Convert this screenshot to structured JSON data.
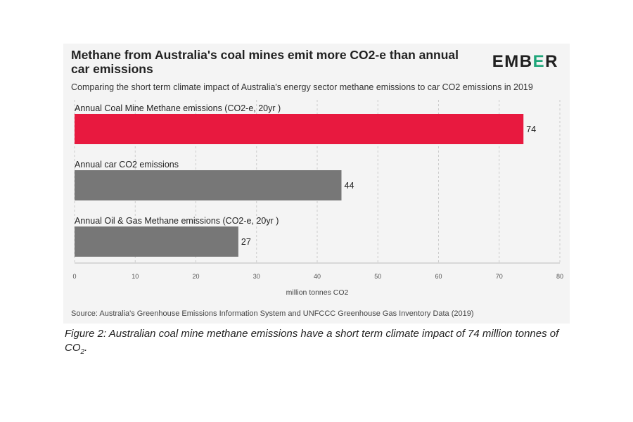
{
  "chart_data": {
    "type": "bar",
    "orientation": "horizontal",
    "title": "Methane from Australia's coal mines emit more CO2-e than annual car emissions",
    "subtitle": "Comparing the short term climate impact of Australia's energy sector methane emissions to car CO2 emissions in 2019",
    "categories": [
      "Annual Coal Mine Methane emissions (CO2-e, 20yr )",
      "Annual car CO2 emissions",
      "Annual Oil & Gas Methane emissions (CO2-e, 20yr )"
    ],
    "values": [
      74,
      44,
      27
    ],
    "data_labels": [
      "74",
      "44",
      "27"
    ],
    "bar_colors": [
      "#e8193f",
      "#777777",
      "#777777"
    ],
    "xlabel": "million tonnes CO2",
    "ylabel": "",
    "xlim": [
      0,
      80
    ],
    "xticks": [
      0,
      10,
      20,
      30,
      40,
      50,
      60,
      70,
      80
    ],
    "grid": "vertical-dashed",
    "legend": "none"
  },
  "logo": {
    "part1": "EMB",
    "part2": "E",
    "part3": "R"
  },
  "source": "Source: Australia's Greenhouse Emissions Information System and UNFCCC Greenhouse Gas Inventory Data (2019)",
  "caption": {
    "text": "Figure 2: Australian coal mine methane emissions have a short term climate impact of 74 million tonnes of CO",
    "sub": "2",
    "end": "."
  },
  "colors": {
    "accent_red": "#e8193f",
    "bar_grey": "#777777",
    "brand_green": "#1fa67a"
  }
}
